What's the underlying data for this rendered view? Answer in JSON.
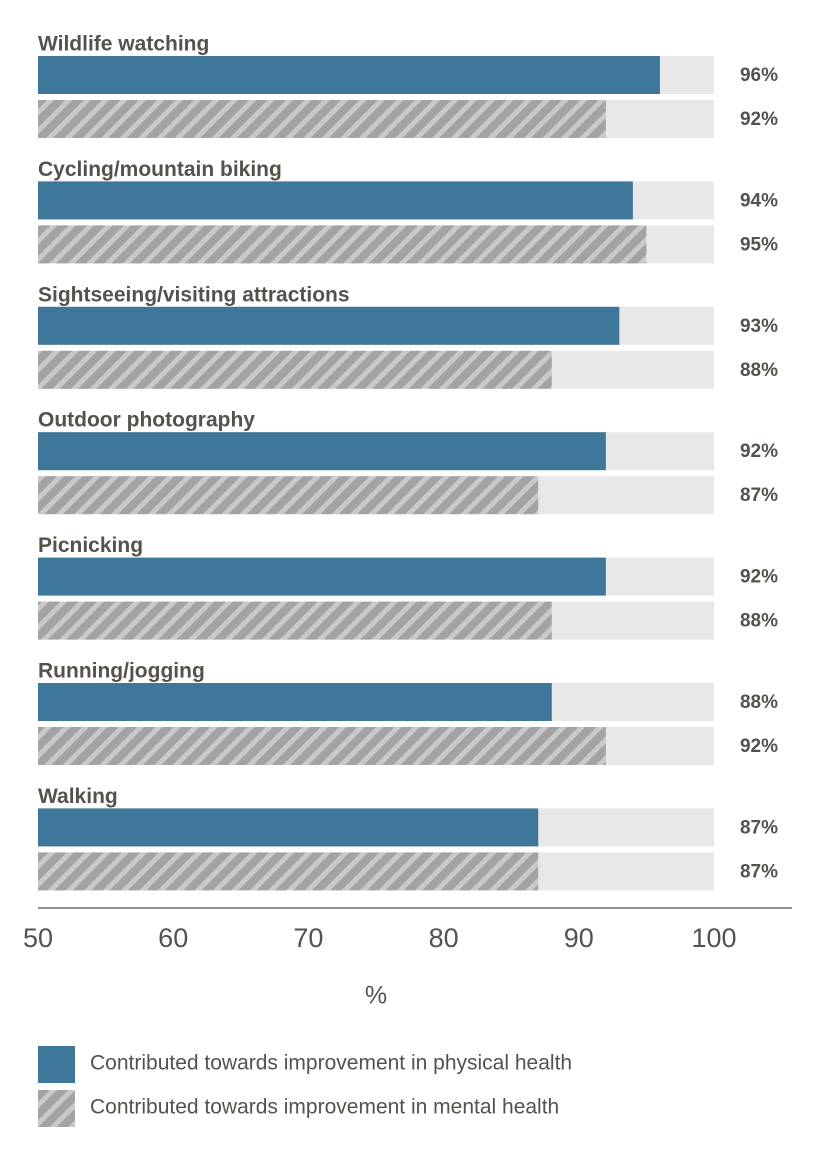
{
  "chart_data": {
    "type": "bar",
    "orientation": "horizontal",
    "categories": [
      "Wildlife watching",
      "Cycling/mountain biking",
      "Sightseeing/visiting attractions",
      "Outdoor photography",
      "Picnicking",
      "Running/jogging",
      "Walking"
    ],
    "series": [
      {
        "name": "Contributed towards improvement in physical health",
        "values": [
          96,
          94,
          93,
          92,
          92,
          88,
          87
        ],
        "labels": [
          "96%",
          "94%",
          "93%",
          "92%",
          "92%",
          "88%",
          "87%"
        ],
        "color": "#3f779b",
        "pattern": "solid"
      },
      {
        "name": "Contributed towards improvement in mental health",
        "values": [
          92,
          95,
          88,
          87,
          88,
          92,
          87
        ],
        "labels": [
          "92%",
          "95%",
          "88%",
          "87%",
          "88%",
          "92%",
          "87%"
        ],
        "color": "#a3a3a3",
        "pattern": "hatched"
      }
    ],
    "xlabel": "%",
    "xlim": [
      50,
      100
    ],
    "xticks": [
      "50",
      "60",
      "70",
      "80",
      "90",
      "100"
    ],
    "track_color": "#e8e8e8",
    "grid": false,
    "legend_position": "bottom-left"
  }
}
